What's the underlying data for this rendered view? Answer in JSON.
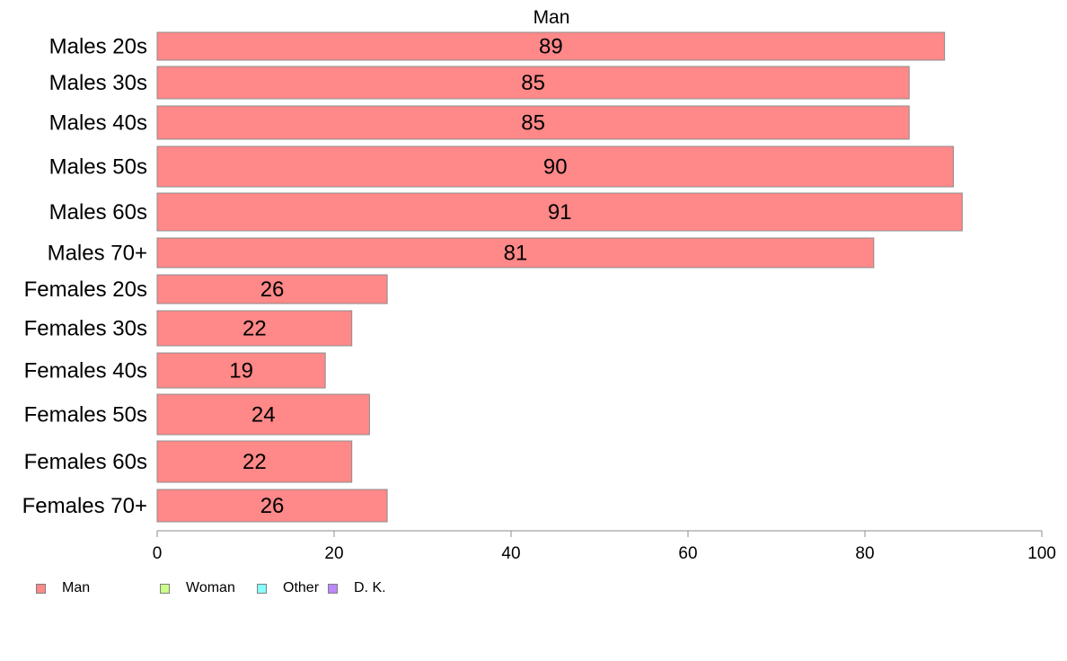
{
  "chart_data": {
    "type": "bar",
    "orientation": "horizontal",
    "title": "Man",
    "categories": [
      "Males 20s",
      "Males 30s",
      "Males 40s",
      "Males 50s",
      "Males 60s",
      "Males 70+",
      "Females 20s",
      "Females 30s",
      "Females 40s",
      "Females 50s",
      "Females 60s",
      "Females 70+"
    ],
    "series": [
      {
        "name": "Man",
        "values": [
          89,
          85,
          85,
          90,
          91,
          81,
          26,
          22,
          19,
          24,
          22,
          26
        ]
      }
    ],
    "value_labels": [
      "89",
      "85",
      "85",
      "90",
      "91",
      "81",
      "26",
      "22",
      "19",
      "24",
      "22",
      "26"
    ],
    "xlim": [
      0,
      100
    ],
    "xticks": [
      "0",
      "20",
      "40",
      "60",
      "80",
      "100"
    ],
    "bar_color": "#ff8888",
    "grid": false
  },
  "legend": {
    "placement": "bottom-left",
    "items": [
      {
        "label": "Man",
        "color": "#ff8888"
      },
      {
        "label": "Woman",
        "color": "#ccff88"
      },
      {
        "label": "Other",
        "color": "#88ffff"
      },
      {
        "label": "D. K.",
        "color": "#bb88ff"
      }
    ]
  }
}
